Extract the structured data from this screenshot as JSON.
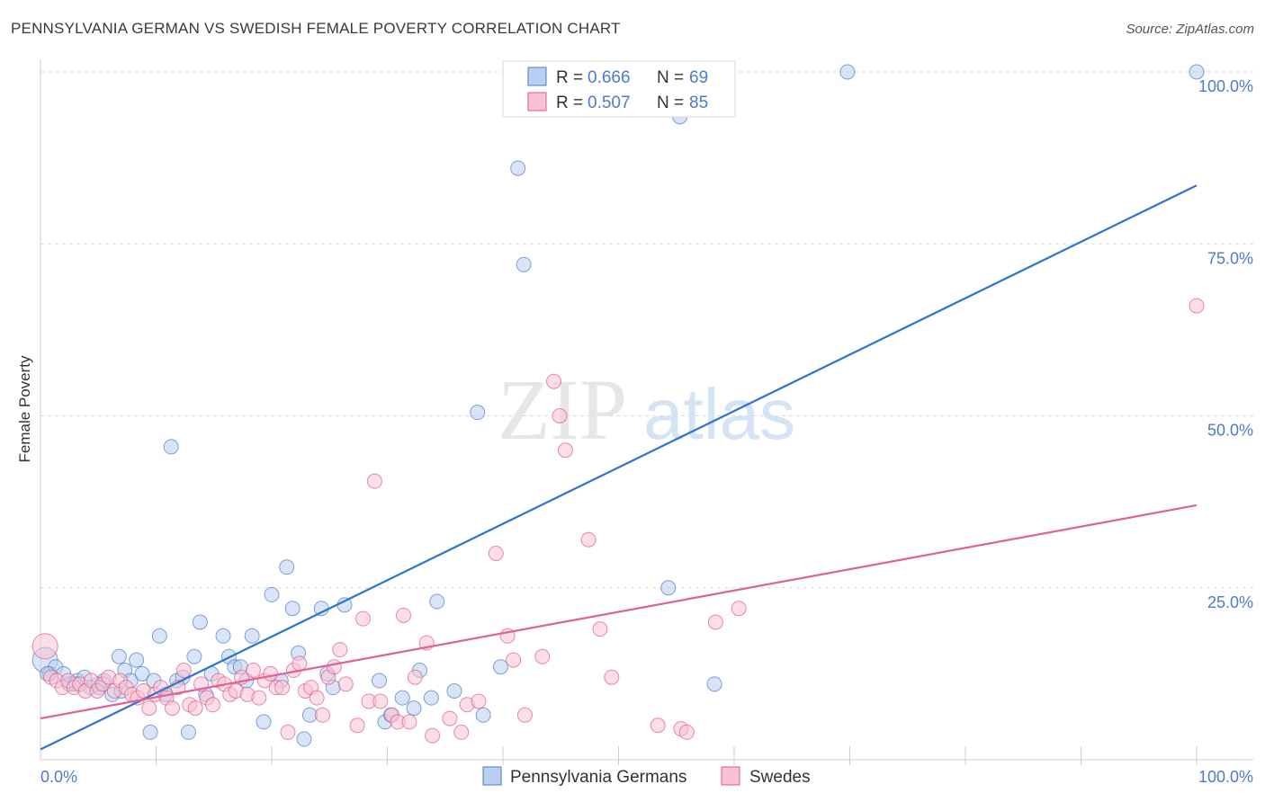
{
  "title": "PENNSYLVANIA GERMAN VS SWEDISH FEMALE POVERTY CORRELATION CHART",
  "source": "Source: ZipAtlas.com",
  "watermark": {
    "zip": "ZIP",
    "atlas": "atlas"
  },
  "colors": {
    "blue": "#4a7cc9",
    "blue_fill": "#b9d0f0",
    "blue_line": "#2f75d0",
    "pink": "#e05a8a",
    "pink_fill": "#f7c3d3",
    "pink_line": "#e0609a",
    "grid": "#d9d9d9"
  },
  "legend": {
    "rows": [
      {
        "r_label": "R = ",
        "r_value": "0.666",
        "n_label": "N = ",
        "n_value": "69",
        "color": "blue"
      },
      {
        "r_label": "R = ",
        "r_value": "0.507",
        "n_label": "N = ",
        "n_value": "85",
        "color": "pink"
      }
    ]
  },
  "chart_data": {
    "type": "scatter",
    "title": "PENNSYLVANIA GERMAN VS SWEDISH FEMALE POVERTY CORRELATION CHART",
    "xlabel": "",
    "ylabel": "Female Poverty",
    "xlim": [
      0,
      100
    ],
    "ylim": [
      0,
      100
    ],
    "x_tick_labels": [
      "0.0%",
      "100.0%"
    ],
    "y_tick_labels": [
      "25.0%",
      "50.0%",
      "75.0%",
      "100.0%"
    ],
    "y_ticks": [
      25,
      50,
      75,
      100
    ],
    "grid": true,
    "legend_position": "bottom",
    "series": [
      {
        "name": "Pennsylvania Germans",
        "color": "blue",
        "trendline": {
          "x": [
            0,
            100
          ],
          "y": [
            1.5,
            83.5
          ]
        },
        "points": [
          [
            0.4,
            14.5
          ],
          [
            0.8,
            12.5
          ],
          [
            1.3,
            13.5
          ],
          [
            2,
            12.5
          ],
          [
            2.5,
            11
          ],
          [
            3.2,
            11.5
          ],
          [
            3.8,
            12
          ],
          [
            4.3,
            10.5
          ],
          [
            5,
            11
          ],
          [
            5.5,
            11.5
          ],
          [
            6.2,
            9.5
          ],
          [
            6.8,
            15
          ],
          [
            7.3,
            13
          ],
          [
            7.8,
            11.5
          ],
          [
            8.3,
            14.5
          ],
          [
            8.8,
            12.5
          ],
          [
            9.5,
            4
          ],
          [
            9.8,
            11.5
          ],
          [
            10.3,
            18
          ],
          [
            10.8,
            9.5
          ],
          [
            11.3,
            45.5
          ],
          [
            11.8,
            11.5
          ],
          [
            12.3,
            12
          ],
          [
            12.8,
            4
          ],
          [
            13.3,
            15
          ],
          [
            13.8,
            20
          ],
          [
            14.3,
            9.5
          ],
          [
            14.8,
            12.5
          ],
          [
            15.8,
            18
          ],
          [
            16.3,
            15
          ],
          [
            16.8,
            13.5
          ],
          [
            17.3,
            13.5
          ],
          [
            17.8,
            11.5
          ],
          [
            18.3,
            18
          ],
          [
            19.3,
            5.5
          ],
          [
            20,
            24
          ],
          [
            20.8,
            11.5
          ],
          [
            21.3,
            28
          ],
          [
            21.8,
            22
          ],
          [
            22.3,
            15.5
          ],
          [
            22.8,
            3
          ],
          [
            23.3,
            6.5
          ],
          [
            24.3,
            22
          ],
          [
            24.8,
            12.5
          ],
          [
            25.3,
            10.5
          ],
          [
            26.3,
            22.5
          ],
          [
            29.3,
            11.5
          ],
          [
            29.8,
            5.5
          ],
          [
            30.3,
            6.5
          ],
          [
            31.3,
            9
          ],
          [
            32.3,
            7.5
          ],
          [
            32.8,
            13
          ],
          [
            33.8,
            9
          ],
          [
            34.3,
            23
          ],
          [
            35.8,
            10
          ],
          [
            37.8,
            50.5
          ],
          [
            38.3,
            6.5
          ],
          [
            39.8,
            13.5
          ],
          [
            41.3,
            86
          ],
          [
            41.8,
            72
          ],
          [
            54.3,
            25
          ],
          [
            55.3,
            93.5
          ],
          [
            58.3,
            11
          ],
          [
            69.8,
            100
          ],
          [
            100,
            100
          ],
          [
            0.6,
            12.5
          ],
          [
            3,
            11
          ],
          [
            5.1,
            10.5
          ],
          [
            7,
            10
          ]
        ]
      },
      {
        "name": "Swedes",
        "color": "pink",
        "trendline": {
          "x": [
            0,
            100
          ],
          "y": [
            6,
            37
          ]
        },
        "points": [
          [
            0.4,
            16.5
          ],
          [
            0.9,
            12
          ],
          [
            1.4,
            11.5
          ],
          [
            1.9,
            10.5
          ],
          [
            2.4,
            11.5
          ],
          [
            2.9,
            10.5
          ],
          [
            3.4,
            11
          ],
          [
            3.9,
            10
          ],
          [
            4.4,
            11.5
          ],
          [
            4.9,
            10
          ],
          [
            5.4,
            11
          ],
          [
            5.9,
            12
          ],
          [
            6.4,
            10
          ],
          [
            6.9,
            11.5
          ],
          [
            7.4,
            10.5
          ],
          [
            7.9,
            9.5
          ],
          [
            8.4,
            9
          ],
          [
            8.9,
            10
          ],
          [
            9.4,
            7.5
          ],
          [
            9.9,
            9.5
          ],
          [
            10.4,
            10.5
          ],
          [
            10.9,
            9
          ],
          [
            11.4,
            7.5
          ],
          [
            11.9,
            10.5
          ],
          [
            12.4,
            13
          ],
          [
            12.9,
            8
          ],
          [
            13.4,
            7.5
          ],
          [
            13.9,
            11
          ],
          [
            14.4,
            9
          ],
          [
            14.9,
            8
          ],
          [
            15.4,
            11.5
          ],
          [
            15.9,
            11
          ],
          [
            16.4,
            9.5
          ],
          [
            16.9,
            10
          ],
          [
            17.4,
            12
          ],
          [
            17.9,
            9.5
          ],
          [
            18.4,
            13
          ],
          [
            18.9,
            9
          ],
          [
            19.4,
            11.5
          ],
          [
            19.9,
            12.5
          ],
          [
            20.4,
            10.5
          ],
          [
            20.9,
            10.5
          ],
          [
            21.4,
            4
          ],
          [
            21.9,
            13
          ],
          [
            22.4,
            14
          ],
          [
            22.9,
            10
          ],
          [
            23.4,
            10.5
          ],
          [
            23.9,
            9
          ],
          [
            24.4,
            6.5
          ],
          [
            24.9,
            12
          ],
          [
            25.4,
            13.5
          ],
          [
            25.9,
            16
          ],
          [
            26.4,
            11
          ],
          [
            27.4,
            5
          ],
          [
            27.9,
            20.5
          ],
          [
            28.4,
            8.5
          ],
          [
            28.9,
            40.5
          ],
          [
            29.4,
            8.5
          ],
          [
            30.4,
            6.5
          ],
          [
            30.9,
            5.5
          ],
          [
            31.4,
            21
          ],
          [
            31.9,
            5.5
          ],
          [
            32.4,
            12
          ],
          [
            33.4,
            17
          ],
          [
            33.9,
            3.5
          ],
          [
            35.4,
            6
          ],
          [
            36.4,
            4
          ],
          [
            36.9,
            8
          ],
          [
            37.9,
            8.5
          ],
          [
            39.4,
            30
          ],
          [
            40.4,
            18
          ],
          [
            40.9,
            14.5
          ],
          [
            41.9,
            6.5
          ],
          [
            43.4,
            15
          ],
          [
            44.4,
            55
          ],
          [
            44.9,
            50
          ],
          [
            45.4,
            45
          ],
          [
            47.4,
            32
          ],
          [
            48.4,
            19
          ],
          [
            49.4,
            12
          ],
          [
            53.4,
            5
          ],
          [
            55.4,
            4.5
          ],
          [
            55.9,
            4
          ],
          [
            58.4,
            20
          ],
          [
            60.4,
            22
          ]
        ]
      }
    ],
    "extra_points": [
      {
        "series": "Swedes",
        "x": 100,
        "y": 66
      }
    ]
  },
  "bottom_legend": [
    {
      "label": "Pennsylvania Germans",
      "color": "blue"
    },
    {
      "label": "Swedes",
      "color": "pink"
    }
  ]
}
